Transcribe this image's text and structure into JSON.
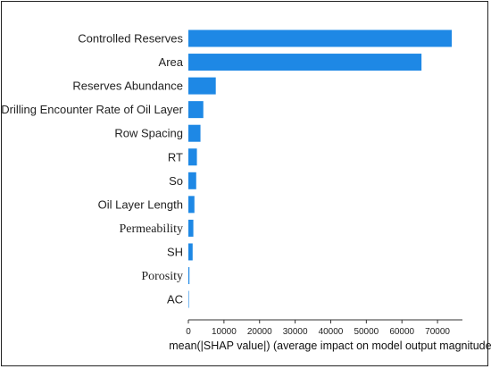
{
  "chart_data": {
    "type": "bar",
    "orientation": "horizontal",
    "categories": [
      "Controlled Reserves",
      "Area",
      "Reserves Abundance",
      "Drilling Encounter Rate of Oil Layer",
      "Row Spacing",
      "RT",
      "So",
      "Oil Layer Length",
      "Permeability",
      "SH",
      "Porosity",
      "AC"
    ],
    "serif_categories": [
      "Permeability",
      "Porosity"
    ],
    "values": [
      74000,
      65500,
      7700,
      4200,
      3400,
      2400,
      2200,
      1700,
      1400,
      1200,
      300,
      80
    ],
    "xlabel": "mean(|SHAP value|) (average impact on model output magnitude)",
    "xticks": [
      0,
      10000,
      20000,
      30000,
      40000,
      50000,
      60000,
      70000
    ],
    "xlim": [
      0,
      77000
    ],
    "bar_color": "#1e88e5",
    "grid": false
  }
}
